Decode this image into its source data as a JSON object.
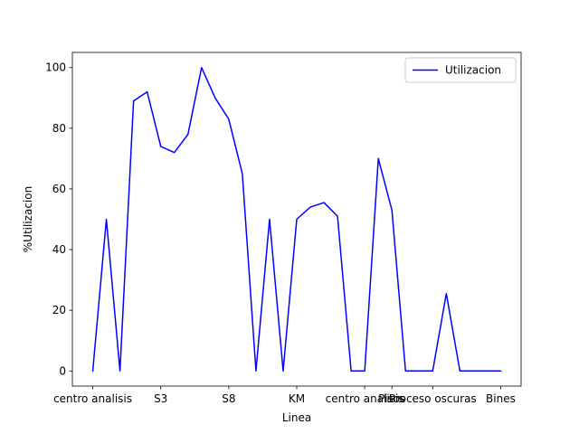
{
  "chart_data": {
    "type": "line",
    "xlabel": "Linea",
    "ylabel": "%Utilizacion",
    "ylim": [
      -4.99,
      104.99
    ],
    "xlim": [
      -1.5,
      31.5
    ],
    "yticks": [
      0,
      20,
      40,
      60,
      80,
      100
    ],
    "xticks": [
      {
        "pos": 0,
        "label": "centro analisis"
      },
      {
        "pos": 5,
        "label": "S3"
      },
      {
        "pos": 10,
        "label": "S8"
      },
      {
        "pos": 15,
        "label": "KM"
      },
      {
        "pos": 20,
        "label": "centro analisis"
      },
      {
        "pos": 22,
        "label": "Pisos"
      },
      {
        "pos": 25,
        "label": "Proceso oscuras"
      },
      {
        "pos": 30,
        "label": "Bines"
      }
    ],
    "grid": false,
    "legend_position": "top-right",
    "series": [
      {
        "name": "Utilizacion",
        "color": "#0000ff",
        "x": [
          0,
          1,
          2,
          3,
          4,
          5,
          6,
          7,
          8,
          9,
          10,
          11,
          12,
          13,
          14,
          15,
          16,
          17,
          18,
          19,
          20,
          21,
          22,
          23,
          24,
          25,
          26,
          27,
          28,
          29,
          30
        ],
        "values": [
          0,
          50,
          0,
          89,
          92,
          74,
          72,
          78,
          100,
          90,
          83,
          65,
          0,
          50,
          0,
          50,
          54,
          55.5,
          51,
          0,
          0,
          70,
          53,
          0,
          0,
          0,
          25.5,
          0,
          0,
          0,
          0
        ]
      }
    ]
  }
}
